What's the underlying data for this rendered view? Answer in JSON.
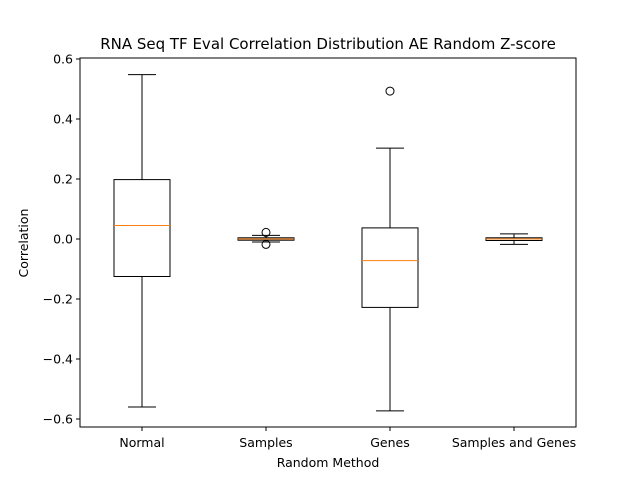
{
  "chart_data": {
    "type": "box",
    "title": "RNA Seq TF Eval Correlation Distribution AE Random Z-score",
    "xlabel": "Random Method",
    "ylabel": "Correlation",
    "ylim": [
      -0.63,
      0.6
    ],
    "yticks": [
      -0.6,
      -0.4,
      -0.2,
      0.0,
      0.2,
      0.4,
      0.6
    ],
    "ytick_labels": [
      "−0.6",
      "−0.4",
      "−0.2",
      "0.0",
      "0.2",
      "0.4",
      "0.6"
    ],
    "grid": false,
    "legend": "none",
    "categories": [
      "Normal",
      "Samples",
      "Genes",
      "Samples and Genes"
    ],
    "boxes": [
      {
        "whisker_low": -0.56,
        "q1": -0.125,
        "median": 0.045,
        "q3": 0.198,
        "whisker_high": 0.548,
        "outliers": []
      },
      {
        "whisker_low": -0.01,
        "q1": -0.004,
        "median": 0.0,
        "q3": 0.004,
        "whisker_high": 0.012,
        "outliers": [
          0.022,
          -0.018
        ]
      },
      {
        "whisker_low": -0.573,
        "q1": -0.228,
        "median": -0.072,
        "q3": 0.037,
        "whisker_high": 0.303,
        "outliers": [
          0.493
        ]
      },
      {
        "whisker_low": -0.018,
        "q1": -0.005,
        "median": 0.0,
        "q3": 0.004,
        "whisker_high": 0.017,
        "outliers": []
      }
    ],
    "colors": {
      "box": "#000000",
      "median": "#ff7f0e"
    }
  }
}
